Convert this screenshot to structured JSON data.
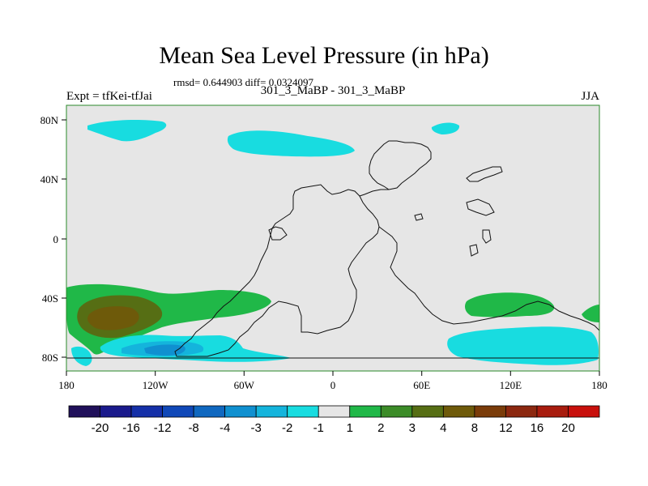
{
  "title": "Mean Sea Level Pressure (in hPa)",
  "stats": "rmsd= 0.644903 diff= 0.0324097",
  "experiment": "Expt = tfKei-tfJai",
  "case": "301_3_MaBP - 301_3_MaBP",
  "season": "JJA",
  "lat_ticks": [
    "80N",
    "40N",
    "0",
    "40S",
    "80S"
  ],
  "lon_ticks": [
    "180",
    "120W",
    "60W",
    "0",
    "60E",
    "120E",
    "180"
  ],
  "colorbar": {
    "colors": [
      "#20105a",
      "#1a1a8c",
      "#1530a8",
      "#1048b8",
      "#1068c0",
      "#1090d0",
      "#14b4dc",
      "#18dce0",
      "#e6e6e6",
      "#20b848",
      "#3c8c28",
      "#566e14",
      "#6e5a0a",
      "#7a3c0a",
      "#8c2810",
      "#a81c0e",
      "#c8100c"
    ],
    "labels": [
      "-20",
      "-16",
      "-12",
      "-8",
      "-4",
      "-3",
      "-2",
      "-1",
      "1",
      "2",
      "3",
      "4",
      "8",
      "12",
      "16",
      "20"
    ]
  },
  "colors": {
    "background": "#e6e6e6",
    "light_blue": "#18dce0",
    "mid_blue": "#14b4dc",
    "blue": "#1090d0",
    "green": "#20b848",
    "olive": "#566e14",
    "brown": "#6e5a0a",
    "frame": "#2a8a2a"
  }
}
